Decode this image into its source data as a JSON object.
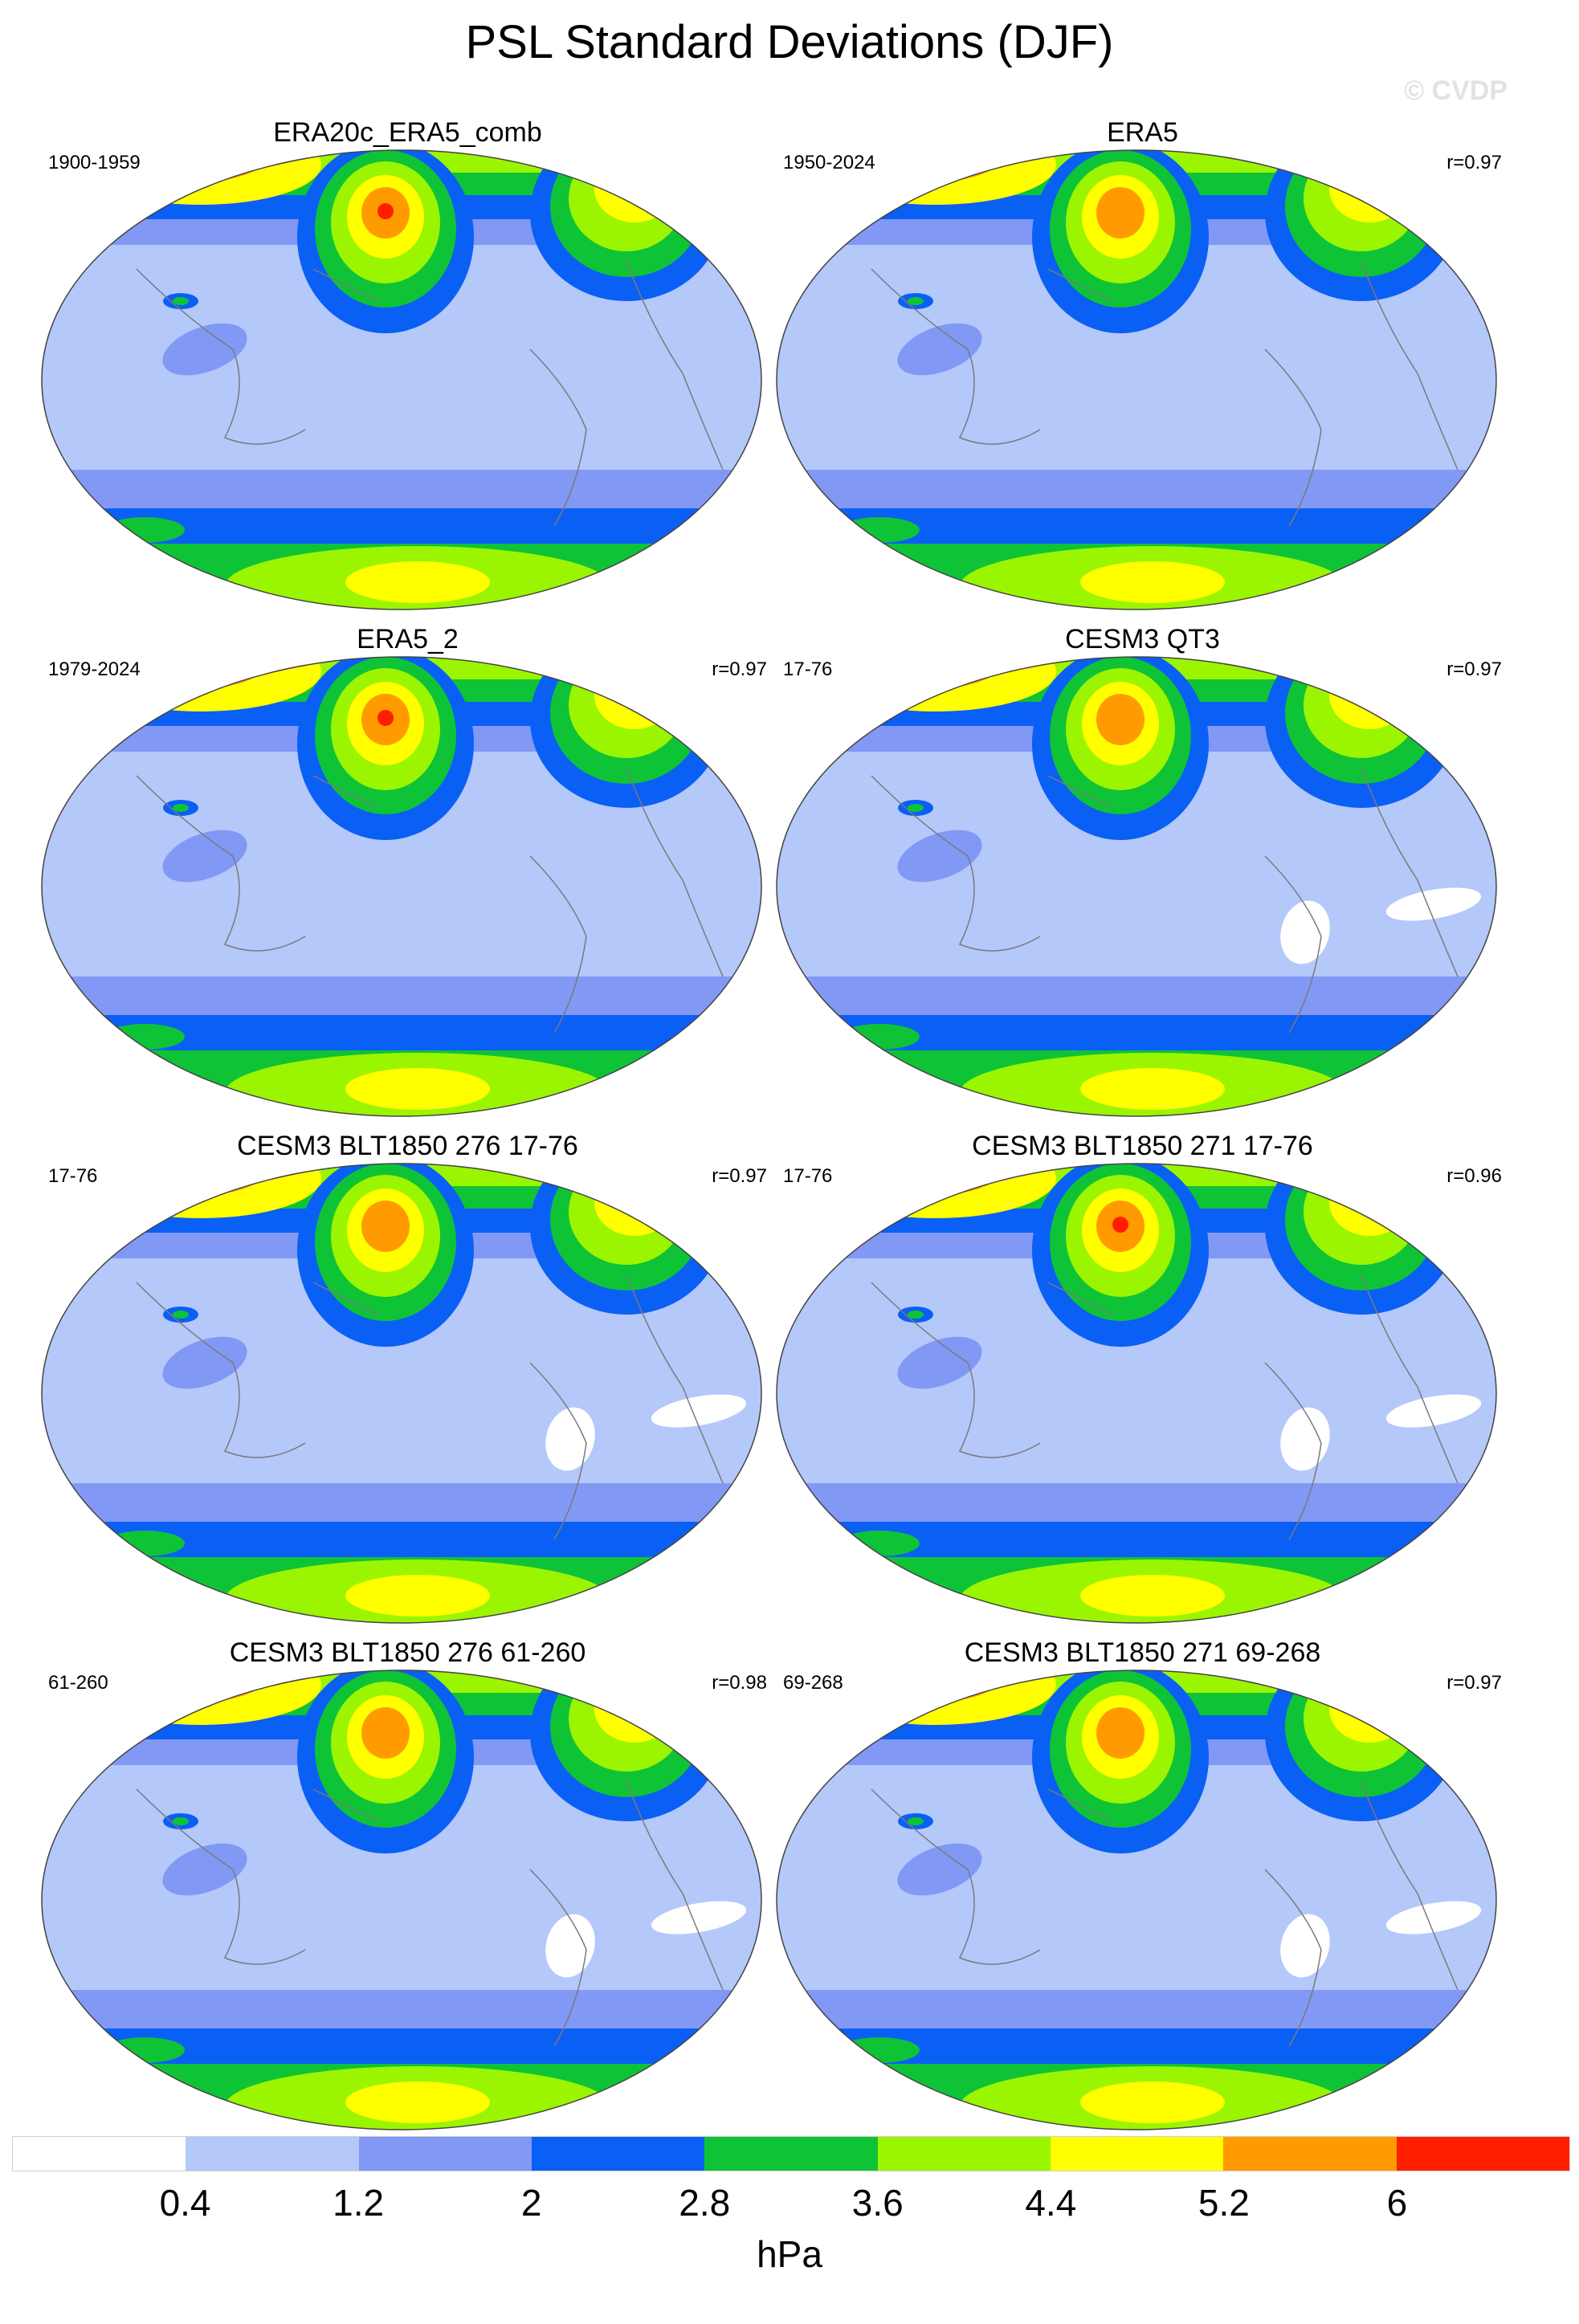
{
  "title": "PSL Standard Deviations (DJF)",
  "watermark": "© CVDP",
  "panels": [
    {
      "title": "ERA20c_ERA5_comb",
      "years": "1900-1959",
      "corr": "",
      "peak": "red",
      "hole": false
    },
    {
      "title": "ERA5",
      "years": "1950-2024",
      "corr": "r=0.97",
      "peak": "orange",
      "hole": false
    },
    {
      "title": "ERA5_2",
      "years": "1979-2024",
      "corr": "r=0.97",
      "peak": "red",
      "hole": false
    },
    {
      "title": "CESM3 QT3",
      "years": "17-76",
      "corr": "r=0.97",
      "peak": "orange",
      "hole": true
    },
    {
      "title": "CESM3 BLT1850 276 17-76",
      "years": "17-76",
      "corr": "r=0.97",
      "peak": "orange",
      "hole": true
    },
    {
      "title": "CESM3 BLT1850 271 17-76",
      "years": "17-76",
      "corr": "r=0.96",
      "peak": "red",
      "hole": true
    },
    {
      "title": "CESM3 BLT1850 276 61-260",
      "years": "61-260",
      "corr": "r=0.98",
      "peak": "orange",
      "hole": true
    },
    {
      "title": "CESM3 BLT1850 271 69-268",
      "years": "69-268",
      "corr": "r=0.97",
      "peak": "orange",
      "hole": true
    }
  ],
  "colorbar": {
    "colors": [
      "#ffffff",
      "#b4c8fa",
      "#8298f5",
      "#0a5ff5",
      "#0fc337",
      "#9bf500",
      "#ffff00",
      "#ff9b00",
      "#ff1e00"
    ],
    "labels": [
      "0.4",
      "1.2",
      "2",
      "2.8",
      "3.6",
      "4.4",
      "5.2",
      "6"
    ],
    "units": "hPa"
  }
}
